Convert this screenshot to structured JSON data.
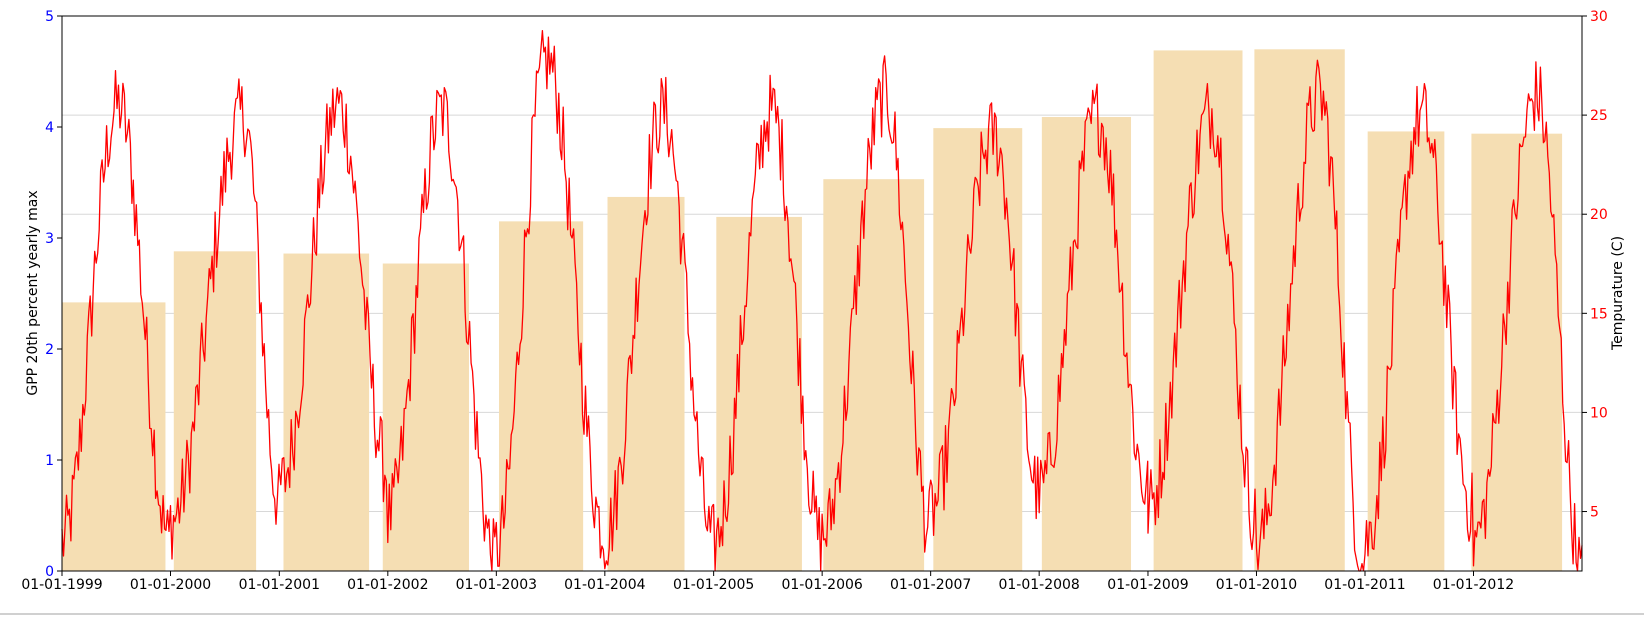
{
  "chart_data": {
    "type": "bar+line",
    "title": "",
    "x_tick_labels": [
      "01-01-1999",
      "01-01-2000",
      "01-01-2001",
      "01-01-2002",
      "01-01-2003",
      "01-01-2004",
      "01-01-2005",
      "01-01-2006",
      "01-01-2007",
      "01-01-2008",
      "01-01-2009",
      "01-01-2010",
      "01-01-2011",
      "01-01-2012"
    ],
    "xlim": [
      "1999-01-01",
      "2012-12-31"
    ],
    "y_left": {
      "label": "GPP 20th percent yearly max",
      "ylim": [
        0,
        5
      ],
      "ticks": [
        0,
        1,
        2,
        3,
        4,
        5
      ],
      "color": "#0000ff"
    },
    "y_right": {
      "label": "Tempurature (C)",
      "ylim": [
        2,
        30
      ],
      "ticks": [
        5,
        10,
        15,
        20,
        25,
        30
      ],
      "color": "#ff0000"
    },
    "bar_color": "#f5deb3",
    "line_color": "#ff0000",
    "grid": true,
    "bars": [
      {
        "start": "1999-01-01",
        "end": "1999-12-15",
        "value": 2.42
      },
      {
        "start": "2000-01-12",
        "end": "2000-10-15",
        "value": 2.88
      },
      {
        "start": "2001-01-15",
        "end": "2001-10-30",
        "value": 2.86
      },
      {
        "start": "2001-12-15",
        "end": "2002-10-01",
        "value": 2.77
      },
      {
        "start": "2003-01-10",
        "end": "2003-10-20",
        "value": 3.15
      },
      {
        "start": "2004-01-10",
        "end": "2004-09-25",
        "value": 3.37
      },
      {
        "start": "2005-01-10",
        "end": "2005-10-25",
        "value": 3.19
      },
      {
        "start": "2006-01-05",
        "end": "2006-12-10",
        "value": 3.53
      },
      {
        "start": "2007-01-10",
        "end": "2007-11-05",
        "value": 3.99
      },
      {
        "start": "2008-01-10",
        "end": "2008-11-05",
        "value": 4.09
      },
      {
        "start": "2009-01-20",
        "end": "2009-11-15",
        "value": 4.69
      },
      {
        "start": "2009-12-25",
        "end": "2010-10-25",
        "value": 4.7
      },
      {
        "start": "2011-01-10",
        "end": "2011-09-25",
        "value": 3.96
      },
      {
        "start": "2011-12-25",
        "end": "2012-10-25",
        "value": 3.94
      }
    ],
    "temperature_series": {
      "yearly_peak": [
        {
          "year": 1999,
          "peak_date": "1999-07-10",
          "max": 25.5,
          "min": 3.5
        },
        {
          "year": 2000,
          "peak_date": "2000-09-01",
          "max": 25.0,
          "min": 5.5
        },
        {
          "year": 2001,
          "peak_date": "2001-07-20",
          "max": 25.5,
          "min": 7.0
        },
        {
          "year": 2002,
          "peak_date": "2002-07-01",
          "max": 25.2,
          "min": 2.5
        },
        {
          "year": 2003,
          "peak_date": "2003-06-20",
          "max": 27.8,
          "min": 4.0
        },
        {
          "year": 2004,
          "peak_date": "2004-07-15",
          "max": 25.2,
          "min": 3.5
        },
        {
          "year": 2005,
          "peak_date": "2005-07-15",
          "max": 25.2,
          "min": 3.5
        },
        {
          "year": 2006,
          "peak_date": "2006-08-01",
          "max": 26.0,
          "min": 4.0
        },
        {
          "year": 2007,
          "peak_date": "2007-08-01",
          "max": 24.0,
          "min": 6.0
        },
        {
          "year": 2008,
          "peak_date": "2008-07-15",
          "max": 25.0,
          "min": 6.0
        },
        {
          "year": 2009,
          "peak_date": "2009-08-01",
          "max": 25.2,
          "min": 4.5
        },
        {
          "year": 2010,
          "peak_date": "2010-08-01",
          "max": 26.0,
          "min": 2.0
        },
        {
          "year": 2011,
          "peak_date": "2011-07-10",
          "max": 25.0,
          "min": 5.0
        },
        {
          "year": 2012,
          "peak_date": "2012-08-01",
          "max": 26.0,
          "min": 2.0
        }
      ]
    }
  }
}
